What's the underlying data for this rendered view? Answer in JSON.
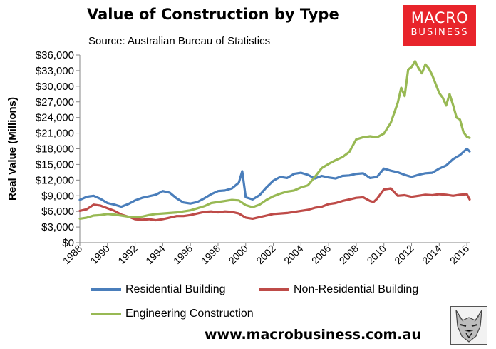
{
  "header": {
    "title": "Value of Construction by Type",
    "source": "Source: Australian Bureau of Statistics"
  },
  "logo": {
    "line1": "MACRO",
    "line2": "BUSINESS"
  },
  "footer": {
    "website": "www.macrobusiness.com.au"
  },
  "colors": {
    "residential": "#4a7ebb",
    "non_residential": "#be4b48",
    "engineering": "#98b954",
    "logo_bg": "#e8242b",
    "axis": "#868686"
  },
  "icons": {
    "wolf": "wolf-mascot-icon"
  },
  "chart_data": {
    "type": "line",
    "title": "Value of Construction by Type",
    "subtitle": "Source: Australian Bureau of Statistics",
    "xlabel": "",
    "ylabel": "Real Value (Millions)",
    "xlim": [
      1988,
      2016.2
    ],
    "ylim": [
      0,
      36000
    ],
    "x_ticks": [
      "1988",
      "1990",
      "1992",
      "1994",
      "1996",
      "1998",
      "2000",
      "2002",
      "2004",
      "2006",
      "2008",
      "2010",
      "2012",
      "2014",
      "2016"
    ],
    "y_ticks": [
      "$0",
      "$3,000",
      "$6,000",
      "$9,000",
      "$12,000",
      "$15,000",
      "$18,000",
      "$21,000",
      "$24,000",
      "$27,000",
      "$30,000",
      "$33,000",
      "$36,000"
    ],
    "grid": false,
    "legend_position": "bottom",
    "series": [
      {
        "name": "Residential Building",
        "x": [
          1988.0,
          1988.5,
          1989.0,
          1989.5,
          1990.0,
          1990.5,
          1991.0,
          1991.5,
          1992.0,
          1992.5,
          1993.0,
          1993.5,
          1994.0,
          1994.5,
          1995.0,
          1995.5,
          1996.0,
          1996.5,
          1997.0,
          1997.5,
          1998.0,
          1998.5,
          1999.0,
          1999.5,
          1999.75,
          2000.0,
          2000.5,
          2001.0,
          2001.5,
          2002.0,
          2002.5,
          2003.0,
          2003.5,
          2004.0,
          2004.5,
          2005.0,
          2005.5,
          2006.0,
          2006.5,
          2007.0,
          2007.5,
          2008.0,
          2008.5,
          2009.0,
          2009.5,
          2010.0,
          2010.5,
          2011.0,
          2011.5,
          2012.0,
          2012.5,
          2013.0,
          2013.5,
          2014.0,
          2014.5,
          2015.0,
          2015.5,
          2016.0,
          2016.2
        ],
        "y": [
          8200,
          8800,
          9000,
          8400,
          7600,
          7300,
          6900,
          7400,
          8100,
          8600,
          8900,
          9200,
          9900,
          9600,
          8500,
          7700,
          7500,
          7800,
          8500,
          9300,
          9900,
          10000,
          10400,
          11500,
          13700,
          8700,
          8300,
          9100,
          10600,
          11900,
          12600,
          12400,
          13200,
          13400,
          13000,
          12300,
          12800,
          12500,
          12300,
          12800,
          12900,
          13200,
          13300,
          12400,
          12600,
          14200,
          13800,
          13500,
          13000,
          12600,
          13000,
          13300,
          13400,
          14200,
          14800,
          16000,
          16800,
          18000,
          17500
        ]
      },
      {
        "name": "Non-Residential Building",
        "x": [
          1988.0,
          1988.5,
          1989.0,
          1989.5,
          1990.0,
          1990.5,
          1991.0,
          1991.5,
          1992.0,
          1992.5,
          1993.0,
          1993.5,
          1994.0,
          1994.5,
          1995.0,
          1995.5,
          1996.0,
          1996.5,
          1997.0,
          1997.5,
          1998.0,
          1998.5,
          1999.0,
          1999.5,
          2000.0,
          2000.5,
          2001.0,
          2001.5,
          2002.0,
          2002.5,
          2003.0,
          2003.5,
          2004.0,
          2004.5,
          2005.0,
          2005.5,
          2006.0,
          2006.5,
          2007.0,
          2007.5,
          2008.0,
          2008.5,
          2009.0,
          2009.25,
          2009.5,
          2010.0,
          2010.5,
          2011.0,
          2011.5,
          2012.0,
          2012.5,
          2013.0,
          2013.5,
          2014.0,
          2014.5,
          2015.0,
          2015.5,
          2016.0,
          2016.2
        ],
        "y": [
          6100,
          6400,
          7300,
          7100,
          6600,
          6100,
          5400,
          5000,
          4500,
          4400,
          4500,
          4300,
          4500,
          4800,
          5100,
          5100,
          5300,
          5600,
          5900,
          6000,
          5800,
          6000,
          5900,
          5600,
          4800,
          4600,
          4900,
          5200,
          5500,
          5600,
          5700,
          5900,
          6100,
          6300,
          6700,
          6900,
          7400,
          7600,
          8000,
          8300,
          8600,
          8700,
          8000,
          7800,
          8400,
          10200,
          10400,
          9000,
          9100,
          8800,
          9000,
          9200,
          9100,
          9300,
          9200,
          9000,
          9200,
          9300,
          8300
        ]
      },
      {
        "name": "Engineering Construction",
        "x": [
          1988.0,
          1988.5,
          1989.0,
          1989.5,
          1990.0,
          1990.5,
          1991.0,
          1991.5,
          1992.0,
          1992.5,
          1993.0,
          1993.5,
          1994.0,
          1994.5,
          1995.0,
          1995.5,
          1996.0,
          1996.5,
          1997.0,
          1997.5,
          1998.0,
          1998.5,
          1999.0,
          1999.5,
          2000.0,
          2000.5,
          2001.0,
          2001.5,
          2002.0,
          2002.5,
          2003.0,
          2003.5,
          2004.0,
          2004.5,
          2005.0,
          2005.5,
          2006.0,
          2006.5,
          2007.0,
          2007.5,
          2008.0,
          2008.5,
          2009.0,
          2009.5,
          2010.0,
          2010.5,
          2011.0,
          2011.25,
          2011.5,
          2011.75,
          2012.0,
          2012.25,
          2012.5,
          2012.75,
          2013.0,
          2013.25,
          2013.5,
          2014.0,
          2014.25,
          2014.5,
          2014.75,
          2015.0,
          2015.25,
          2015.5,
          2015.75,
          2016.0,
          2016.2
        ],
        "y": [
          4600,
          4800,
          5200,
          5300,
          5500,
          5400,
          5200,
          5000,
          4900,
          5000,
          5300,
          5500,
          5600,
          5700,
          5800,
          6000,
          6200,
          6600,
          7000,
          7600,
          7800,
          8000,
          8200,
          8100,
          7200,
          6800,
          7300,
          8200,
          8900,
          9400,
          9800,
          10000,
          10600,
          11000,
          12600,
          14300,
          15100,
          15800,
          16400,
          17400,
          19800,
          20200,
          20400,
          20200,
          20900,
          23000,
          26800,
          29700,
          28100,
          33200,
          33700,
          34800,
          33500,
          32500,
          34200,
          33400,
          32100,
          28700,
          27800,
          26300,
          28500,
          26400,
          24000,
          23600,
          21200,
          20300,
          20100
        ]
      }
    ]
  }
}
